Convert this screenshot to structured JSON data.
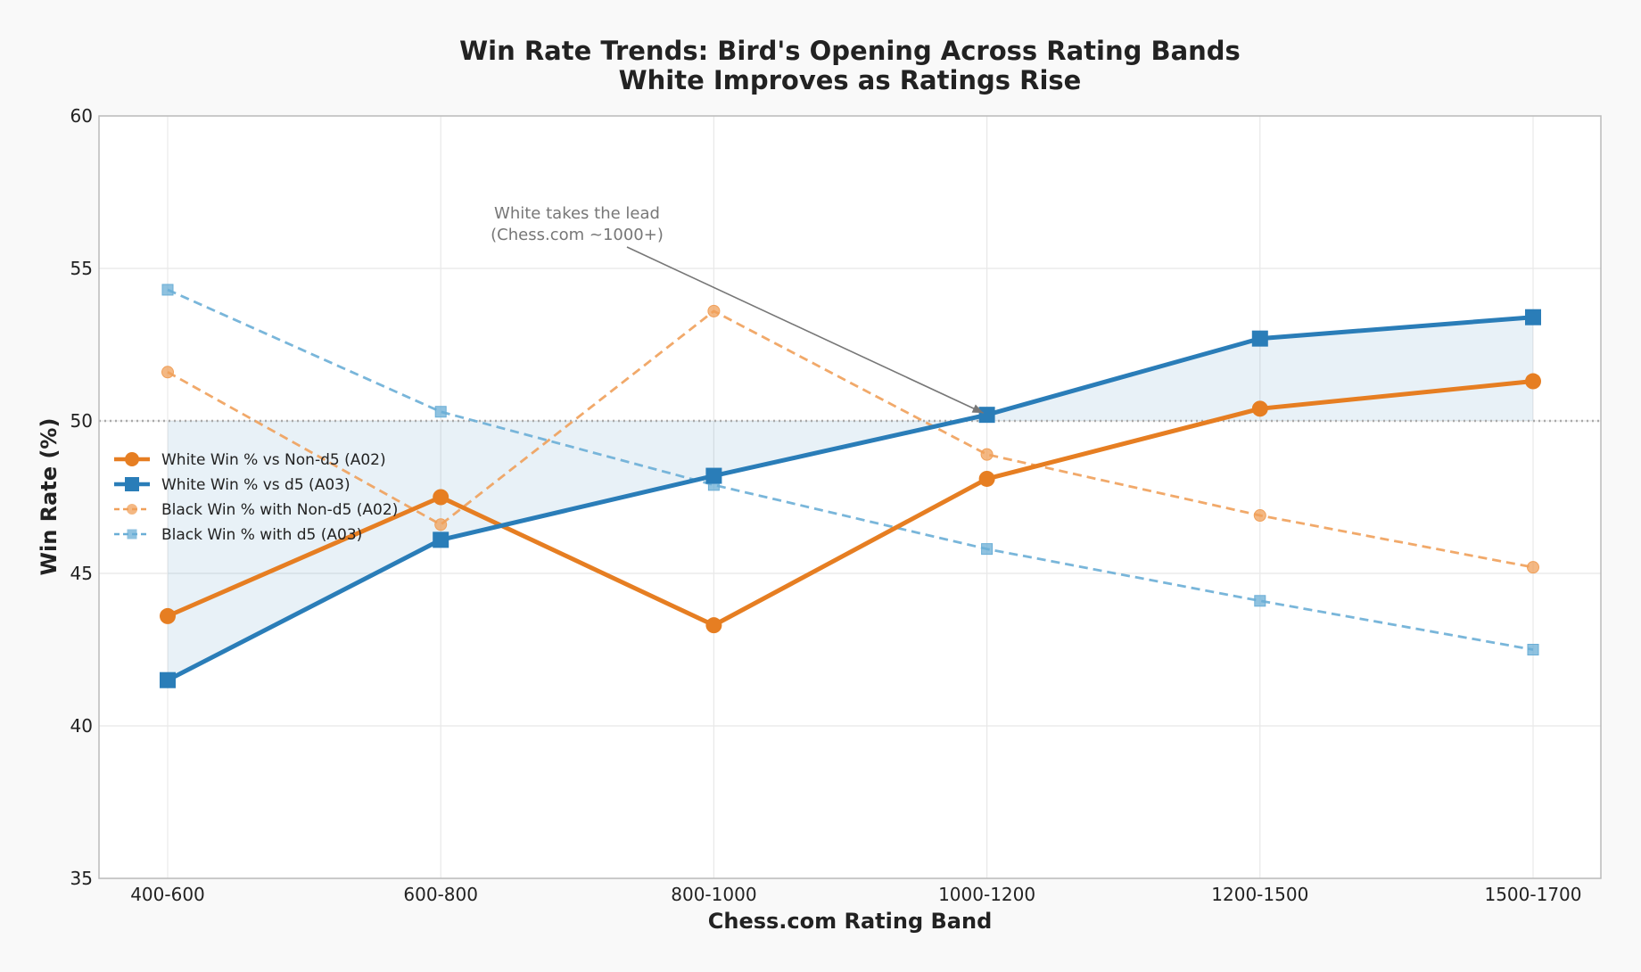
{
  "chart_data": {
    "type": "line",
    "title": "Win Rate Trends: Bird's Opening Across Rating Bands",
    "subtitle": "White Improves as Ratings Rise",
    "xlabel": "Chess.com Rating Band",
    "ylabel": "Win Rate (%)",
    "categories": [
      "400-600",
      "600-800",
      "800-1000",
      "1000-1200",
      "1200-1500",
      "1500-1700"
    ],
    "ylim": [
      35,
      60
    ],
    "yticks": [
      "35",
      "40",
      "45",
      "50",
      "55",
      "60"
    ],
    "grid": true,
    "reference_line": 50,
    "legend_position": "center-left",
    "series": [
      {
        "name": "White Win % vs Non-d5 (A02)",
        "values": [
          43.6,
          47.5,
          43.3,
          48.1,
          50.4,
          51.3
        ],
        "color": "#e67e22",
        "style": "solid",
        "marker": "circle"
      },
      {
        "name": "White Win % vs d5 (A03)",
        "values": [
          41.5,
          46.1,
          48.2,
          50.2,
          52.7,
          53.4
        ],
        "color": "#2a7db8",
        "style": "solid",
        "marker": "square"
      },
      {
        "name": "Black Win % with Non-d5 (A02)",
        "values": [
          51.6,
          46.6,
          53.6,
          48.9,
          46.9,
          45.2
        ],
        "color": "#f0a05a",
        "style": "dashed",
        "marker": "circle"
      },
      {
        "name": "Black Win % with d5 (A03)",
        "values": [
          54.3,
          50.3,
          47.9,
          45.8,
          44.1,
          42.5
        ],
        "color": "#6aaed6",
        "style": "dashed",
        "marker": "square"
      }
    ],
    "fill_between": {
      "series_index": 1,
      "baseline": 50,
      "color": "#2a7db8"
    },
    "annotation": {
      "lines": [
        "White takes the lead",
        "(Chess.com ~1000+)"
      ],
      "target_category": "1000-1200",
      "target_value": 50.2
    }
  }
}
